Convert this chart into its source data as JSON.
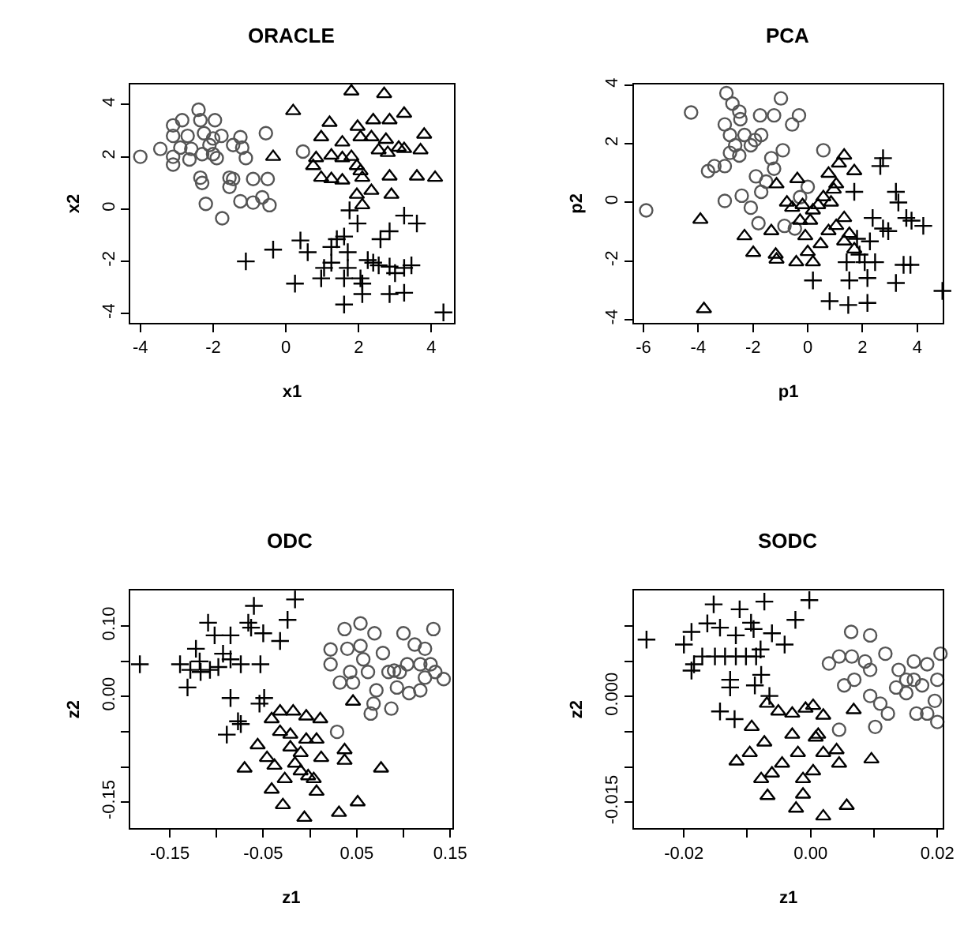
{
  "chart_data": [
    {
      "type": "scatter",
      "title": "ORACLE",
      "xlabel": "x1",
      "ylabel": "x2",
      "xlim": [
        -4.27,
        4.61
      ],
      "ylim": [
        -4.34,
        4.76
      ],
      "xticks": [
        -4,
        -2,
        0,
        2,
        4
      ],
      "yticks": [
        -4,
        -2,
        0,
        2,
        4
      ],
      "series": [
        {
          "color": "#555555",
          "marker": "circle",
          "x": [
            -4,
            -3.45,
            -3.1,
            -2.85,
            -3.1,
            -3.1,
            -3.1,
            -2.7,
            -2.6,
            -2.65,
            -2.4,
            -2.35,
            -2.25,
            -2.3,
            -2.0,
            -1.95,
            -2.0,
            -1.77,
            -2.35,
            -2.3,
            -2.2,
            -1.75,
            -1.55,
            -1.55,
            -1.45,
            -1.25,
            -1.2,
            -1.1,
            -1.25,
            -0.9,
            -0.9,
            -0.65,
            -0.5,
            -0.55,
            -0.45,
            0.47,
            -2.9,
            -2.1,
            -1.45,
            -1.9
          ],
          "values": [
            2.0,
            2.3,
            3.2,
            3.4,
            2.8,
            2.0,
            1.7,
            2.8,
            2.3,
            1.9,
            3.8,
            3.4,
            2.9,
            2.1,
            2.1,
            3.4,
            2.7,
            2.8,
            1.2,
            1.0,
            0.2,
            -0.35,
            1.2,
            0.85,
            1.15,
            2.75,
            2.35,
            1.95,
            0.3,
            1.15,
            0.25,
            0.45,
            1.15,
            2.9,
            0.15,
            2.2,
            2.35,
            2.45,
            2.45,
            1.95
          ]
        },
        {
          "color": "#000000",
          "marker": "triangle",
          "x": [
            0.2,
            -0.35,
            1.8,
            2.7,
            3.25,
            2.4,
            2.85,
            1.2,
            0.97,
            1.55,
            1.97,
            2.05,
            2.35,
            2.75,
            3.8,
            3.1,
            3.7,
            2.8,
            1.25,
            1.55,
            1.8,
            0.75,
            0.97,
            1.25,
            1.55,
            1.95,
            2.1,
            2.35,
            1.95,
            2.1,
            2.85,
            2.9,
            3.6,
            4.1,
            3.25,
            2.55,
            2.05,
            0.83
          ],
          "values": [
            3.75,
            2.0,
            4.5,
            4.4,
            3.65,
            3.4,
            3.4,
            3.3,
            2.75,
            2.55,
            3.15,
            2.75,
            2.75,
            2.65,
            2.85,
            2.35,
            2.25,
            2.15,
            2.05,
            1.95,
            2.0,
            1.65,
            1.2,
            1.15,
            1.1,
            1.65,
            1.2,
            0.7,
            0.55,
            0.15,
            1.25,
            0.55,
            1.25,
            1.2,
            2.3,
            2.25,
            1.45,
            1.95
          ]
        },
        {
          "color": "#000000",
          "marker": "cross",
          "x": [
            4.33,
            -1.1,
            -0.35,
            0.4,
            0.6,
            0.25,
            1.05,
            0.97,
            1.25,
            1.4,
            1.6,
            1.75,
            1.97,
            1.7,
            1.6,
            1.6,
            1.7,
            2.05,
            2.1,
            2.25,
            2.4,
            2.55,
            2.85,
            3.0,
            3.25,
            3.45,
            2.6,
            2.85,
            3.25,
            3.6,
            2.85,
            3.25,
            1.25,
            2.1
          ],
          "values": [
            -3.95,
            -2.0,
            -1.55,
            -1.2,
            -1.65,
            -2.85,
            -2.25,
            -2.65,
            -1.45,
            -1.15,
            -1.05,
            -0.05,
            -0.55,
            -1.65,
            -2.65,
            -3.65,
            -2.25,
            -2.65,
            -3.25,
            -1.95,
            -2.05,
            -2.15,
            -2.2,
            -2.45,
            -2.25,
            -2.15,
            -1.15,
            -0.85,
            -0.25,
            -0.55,
            -3.25,
            -3.2,
            -2.05,
            -2.85
          ]
        }
      ]
    },
    {
      "type": "scatter",
      "title": "PCA",
      "xlabel": "p1",
      "ylabel": "p2",
      "xlim": [
        -6.35,
        4.94
      ],
      "ylim": [
        -4.1,
        4.02
      ],
      "xticks": [
        -6,
        -4,
        -2,
        0,
        2,
        4
      ],
      "yticks": [
        -4,
        -2,
        0,
        2,
        4
      ],
      "series": [
        {
          "color": "#555555",
          "marker": "circle",
          "x": [
            -5.9,
            -4.26,
            -2.97,
            -2.75,
            -2.5,
            -2.46,
            -3.03,
            -2.84,
            -2.65,
            -2.31,
            -2.08,
            -1.93,
            -1.7,
            -1.74,
            -1.23,
            -0.98,
            -0.57,
            -0.32,
            -3.64,
            -3.41,
            -3.03,
            -2.84,
            -2.5,
            -3.03,
            -2.41,
            -2.08,
            -1.89,
            -1.8,
            -1.7,
            -1.52,
            -1.33,
            -1.23,
            -0.91,
            -0.85,
            -0.47,
            0.57,
            0,
            -0.28
          ],
          "values": [
            -0.27,
            3.07,
            3.73,
            3.37,
            3.1,
            2.84,
            2.66,
            2.3,
            1.95,
            2.3,
            1.95,
            2.13,
            2.3,
            2.97,
            2.97,
            3.55,
            2.66,
            2.97,
            1.07,
            1.24,
            1.24,
            1.69,
            1.6,
            0.05,
            0.23,
            -0.18,
            0.89,
            -0.71,
            0.36,
            0.71,
            1.51,
            1.15,
            1.78,
            -0.8,
            -0.89,
            1.78,
            0.53,
            0.18
          ]
        },
        {
          "color": "#000000",
          "marker": "triangle",
          "x": [
            -3.92,
            -3.79,
            -2.31,
            -1.99,
            -1.17,
            -1.14,
            -1.33,
            -1.14,
            -0.38,
            -0.42,
            0.19,
            -0.57,
            -0.28,
            -0.09,
            0,
            0.47,
            0.76,
            1.04,
            1.33,
            1.7,
            1.14,
            0.76,
            0.95,
            0.57,
            0.19,
            0.38,
            -0.19,
            -0.76,
            1.33,
            1.52,
            1.33,
            1.7,
            0.09,
            0.85,
            1.04
          ],
          "values": [
            -0.59,
            -3.64,
            -1.15,
            -1.72,
            -1.78,
            -1.95,
            -0.98,
            0.62,
            0.8,
            -2.04,
            -2.04,
            -0.18,
            -0.62,
            -1.15,
            -1.69,
            -1.42,
            -0.98,
            -0.8,
            1.6,
            1.07,
            1.33,
            0.98,
            0.44,
            0.18,
            -0.27,
            -0.09,
            -0.09,
            0,
            -0.53,
            -1.07,
            -1.33,
            -1.6,
            -0.62,
            0,
            0.62
          ]
        },
        {
          "color": "#000000",
          "marker": "cross",
          "x": [
            2.75,
            2.65,
            3.22,
            3.31,
            3.6,
            3.79,
            4.22,
            4.92,
            3.75,
            3.5,
            3.22,
            2.46,
            2.18,
            2.08,
            1.89,
            1.52,
            1.42,
            0.19,
            0.8,
            1.48,
            2.18,
            2.37,
            2.94,
            2.75,
            1.8,
            1.7,
            2.27
          ],
          "values": [
            1.51,
            1.24,
            0.36,
            0,
            -0.53,
            -0.62,
            -0.8,
            -3.02,
            -2.13,
            -2.13,
            -2.75,
            -2.04,
            -2.58,
            -2.04,
            -1.78,
            -2.66,
            -2.04,
            -2.66,
            -3.37,
            -3.5,
            -3.43,
            -0.53,
            -0.98,
            -0.89,
            -1.24,
            0.36,
            -1.33
          ]
        }
      ]
    },
    {
      "type": "scatter",
      "title": "ODC",
      "xlabel": "z1",
      "ylabel": "z2",
      "xlim": [
        -0.192,
        0.152
      ],
      "ylim": [
        -0.187,
        0.151
      ],
      "xticks": [
        -0.15,
        {
          "value": -0.1,
          "label": null
        },
        -0.05,
        {
          "value": 0,
          "label": null
        },
        0.05,
        {
          "value": 0.1,
          "label": null
        },
        0.15
      ],
      "yticks": [
        -0.15,
        {
          "value": -0.1,
          "label": null
        },
        {
          "value": -0.05,
          "label": null
        },
        {
          "value": 0,
          "label": "0.00"
        },
        {
          "value": 0.05,
          "label": null
        },
        {
          "value": 0.1,
          "label": "0.10"
        }
      ],
      "series": [
        {
          "color": "#555555",
          "marker": "circle",
          "x": [
            0.022,
            0.037,
            0.054,
            0.069,
            0.022,
            0.04,
            0.054,
            0.057,
            0.043,
            0.032,
            0.046,
            0.062,
            0.078,
            0.1,
            0.112,
            0.132,
            0.123,
            0.143,
            0.134,
            0.123,
            0.118,
            0.106,
            0.093,
            0.084,
            0.09,
            0.096,
            0.071,
            0.068,
            0.065,
            0.087,
            0.029,
            0.118,
            0.104,
            0.129
          ],
          "values": [
            0.067,
            0.096,
            0.104,
            0.09,
            0.046,
            0.068,
            0.072,
            0.053,
            0.035,
            0.02,
            0.02,
            0.035,
            0.062,
            0.09,
            0.074,
            0.096,
            0.068,
            0.025,
            0.035,
            0.027,
            0.009,
            0.005,
            0.013,
            0.035,
            0.037,
            0.035,
            0.009,
            -0.01,
            -0.024,
            -0.017,
            -0.05,
            0.046,
            0.046,
            0.046
          ]
        },
        {
          "color": "#000000",
          "marker": "triangle",
          "x": [
            0.046,
            0.076,
            0.051,
            0.031,
            -0.006,
            -0.029,
            -0.041,
            -0.07,
            -0.056,
            -0.041,
            -0.032,
            -0.018,
            -0.004,
            0.011,
            0.037,
            0.037,
            0.007,
            0.004,
            0.007,
            -0.016,
            -0.01,
            -0.021,
            -0.032,
            -0.038,
            -0.027,
            -0.01,
            0.012,
            -0.002,
            -0.046,
            -0.021,
            -0.004
          ],
          "values": [
            -0.007,
            -0.102,
            -0.15,
            -0.165,
            -0.172,
            -0.154,
            -0.132,
            -0.102,
            -0.069,
            -0.032,
            -0.021,
            -0.021,
            -0.028,
            -0.032,
            -0.076,
            -0.091,
            -0.061,
            -0.117,
            -0.135,
            -0.095,
            -0.08,
            -0.054,
            -0.05,
            -0.098,
            -0.117,
            -0.106,
            -0.087,
            -0.113,
            -0.087,
            -0.072,
            -0.061
          ]
        },
        {
          "color": "#000000",
          "marker": "cross",
          "x": [
            -0.182,
            -0.139,
            -0.131,
            -0.122,
            -0.118,
            -0.109,
            -0.102,
            -0.098,
            -0.085,
            -0.085,
            -0.085,
            -0.077,
            -0.089,
            -0.074,
            -0.074,
            -0.066,
            -0.06,
            -0.063,
            -0.053,
            -0.05,
            -0.049,
            -0.054,
            -0.032,
            -0.024,
            -0.016,
            -0.117,
            -0.107,
            -0.093,
            -0.128
          ],
          "values": [
            0.046,
            0.046,
            0.013,
            0.068,
            0.05,
            0.105,
            0.087,
            0.042,
            0.087,
            0.053,
            -0.002,
            -0.035,
            -0.054,
            -0.039,
            0.046,
            0.105,
            0.129,
            0.098,
            0.046,
            0.09,
            -0.002,
            -0.01,
            0.079,
            0.109,
            0.138,
            0.035,
            0.038,
            0.061,
            0.038
          ]
        }
      ]
    },
    {
      "type": "scatter",
      "title": "SODC",
      "xlabel": "z1",
      "ylabel": "z2",
      "xlim": [
        -0.0279,
        0.0209
      ],
      "ylim": [
        -0.0187,
        0.0151
      ],
      "xticks": [
        {
          "value": -0.02,
          "label": "-0.02"
        },
        {
          "value": -0.01,
          "label": null
        },
        {
          "value": 0,
          "label": "0.00"
        },
        {
          "value": 0.01,
          "label": null
        },
        {
          "value": 0.02,
          "label": "0.02"
        }
      ],
      "yticks": [
        -0.015,
        {
          "value": -0.01,
          "label": null
        },
        {
          "value": -0.005,
          "label": null
        },
        {
          "value": 0,
          "label": "0.000"
        },
        {
          "value": 0.005,
          "label": null
        },
        {
          "value": 0.01,
          "label": null
        }
      ],
      "series": [
        {
          "color": "#555555",
          "marker": "circle",
          "x": [
            0.0064,
            0.0094,
            0.0029,
            0.0045,
            0.0065,
            0.0086,
            0.0094,
            0.0118,
            0.0069,
            0.0053,
            0.0045,
            0.0102,
            0.0094,
            0.011,
            0.0122,
            0.0139,
            0.0151,
            0.0163,
            0.0176,
            0.0184,
            0.02,
            0.0205,
            0.0196,
            0.0184,
            0.0167,
            0.0151,
            0.0135,
            0.02,
            0.0163
          ],
          "values": [
            0.0092,
            0.0087,
            0.0047,
            0.0057,
            0.0057,
            0.005,
            0.0038,
            0.0061,
            0.0024,
            0.0016,
            -0.0047,
            -0.0043,
            0.0001,
            -0.001,
            -0.0024,
            0.0038,
            0.0024,
            0.005,
            0.0016,
            0.0046,
            0.0024,
            0.0061,
            -0.0006,
            -0.0024,
            -0.0024,
            0.0005,
            0.0013,
            -0.0036,
            0.0024
          ]
        },
        {
          "color": "#000000",
          "marker": "triangle",
          "x": [
            0.0068,
            0.0096,
            0.0057,
            0.002,
            -0.0023,
            -0.0068,
            -0.0117,
            -0.0096,
            -0.0093,
            -0.0069,
            -0.0051,
            -0.0029,
            -0.0008,
            0.0004,
            0.002,
            0.0012,
            0.0041,
            0.0045,
            -0.0029,
            -0.0073,
            -0.002,
            -0.0045,
            -0.0078,
            -0.0012,
            0.0004,
            0.002,
            -0.0012,
            -0.0061,
            0.0008
          ],
          "values": [
            -0.0019,
            -0.0089,
            -0.0155,
            -0.017,
            -0.0159,
            -0.0141,
            -0.0092,
            -0.008,
            -0.0043,
            -0.001,
            -0.0021,
            -0.0024,
            -0.0017,
            -0.0013,
            -0.0027,
            -0.0054,
            -0.0076,
            -0.0095,
            -0.0054,
            -0.0065,
            -0.008,
            -0.0095,
            -0.0117,
            -0.0117,
            -0.0106,
            -0.008,
            -0.0139,
            -0.0109,
            -0.0058
          ]
        },
        {
          "color": "#000000",
          "marker": "cross",
          "x": [
            -0.0259,
            -0.02,
            -0.0188,
            -0.0184,
            -0.0188,
            -0.0163,
            -0.0153,
            -0.0171,
            -0.0151,
            -0.0135,
            -0.0118,
            -0.0102,
            -0.0086,
            -0.0079,
            -0.0143,
            -0.0118,
            -0.0112,
            -0.0094,
            -0.009,
            -0.0073,
            -0.0061,
            -0.0041,
            -0.0024,
            -0.0002,
            -0.0127,
            -0.0127,
            -0.0143,
            -0.012,
            -0.0078,
            -0.0088,
            -0.0065
          ],
          "values": [
            0.0081,
            0.0074,
            0.0092,
            0.0046,
            0.0037,
            0.0104,
            0.0131,
            0.0057,
            0.0057,
            0.0057,
            0.0057,
            0.0057,
            0.0057,
            0.0067,
            0.0098,
            0.0087,
            0.0124,
            0.0105,
            0.0096,
            0.0135,
            0.009,
            0.0074,
            0.0109,
            0.0137,
            0.0024,
            0.0013,
            -0.0021,
            -0.0032,
            0.0031,
            0.0016,
            0.0001
          ]
        }
      ]
    }
  ]
}
